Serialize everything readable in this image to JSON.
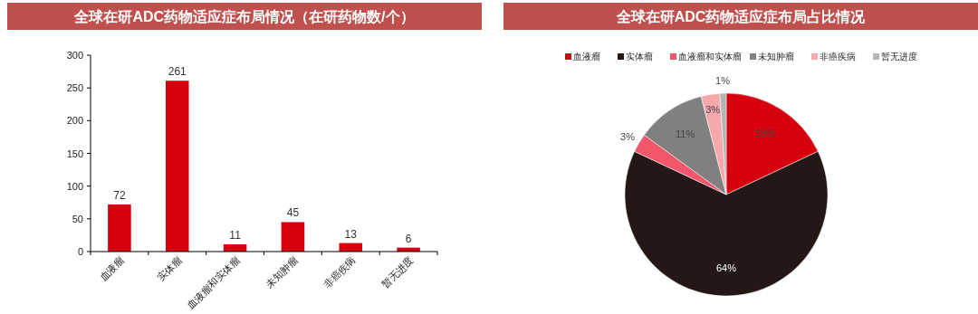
{
  "chart_data": [
    {
      "type": "bar",
      "title": "全球在研ADC药物适应症布局情况（在研药物数/个）",
      "categories": [
        "血液瘤",
        "实体瘤",
        "血液瘤和实体瘤",
        "未知肿瘤",
        "非癌疾病",
        "暂无进度"
      ],
      "values": [
        72,
        261,
        11,
        45,
        13,
        6
      ],
      "color": "#d7000f",
      "ylim": [
        0,
        300
      ],
      "yticks": [
        0,
        50,
        100,
        150,
        200,
        250,
        300
      ],
      "data_labels": true
    },
    {
      "type": "pie",
      "title": "全球在研ADC药物适应症布局占比情况",
      "categories": [
        "血液瘤",
        "实体瘤",
        "血液瘤和实体瘤",
        "未知肿瘤",
        "非癌疾病",
        "暂无进度"
      ],
      "values": [
        18,
        64,
        3,
        11,
        3,
        1
      ],
      "colors": [
        "#d7000f",
        "#231815",
        "#f2566a",
        "#808080",
        "#f7a8ad",
        "#b4b4b4"
      ],
      "value_labels": [
        "18%",
        "64%",
        "3%",
        "11%",
        "3%",
        "1%"
      ],
      "legend": "top"
    }
  ]
}
